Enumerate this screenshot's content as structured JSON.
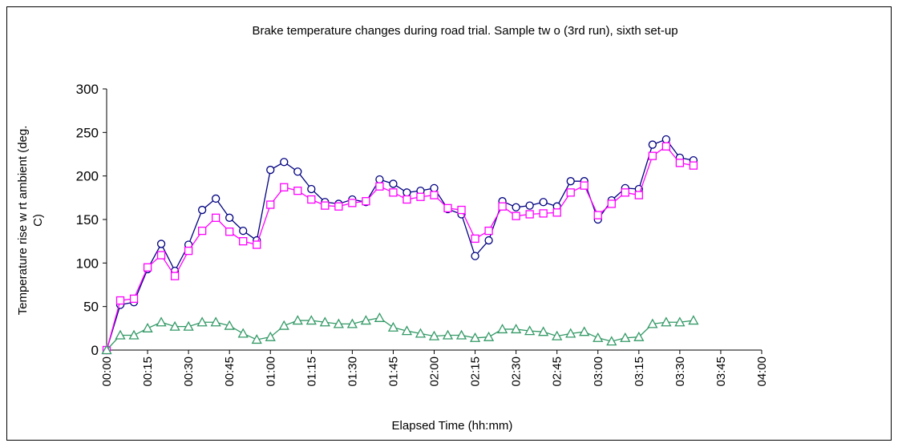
{
  "chart_data": {
    "type": "line",
    "title": "Brake temperature changes during road trial. Sample tw o (3rd run), sixth set-up",
    "xlabel": "Elapsed Time (hh:mm)",
    "ylabel": [
      "Temperature rise w rt ambient (deg.",
      "C)"
    ],
    "x": [
      0,
      5,
      10,
      15,
      20,
      25,
      30,
      35,
      40,
      45,
      50,
      55,
      60,
      65,
      70,
      75,
      80,
      85,
      90,
      95,
      100,
      105,
      110,
      115,
      120,
      125,
      130,
      135,
      140,
      145,
      150,
      155,
      160,
      165,
      170,
      175,
      180,
      185,
      190,
      195,
      200,
      205,
      210,
      215
    ],
    "series": [
      {
        "color": "#000080",
        "marker": "circle",
        "values": [
          0,
          52,
          55,
          93,
          122,
          91,
          121,
          161,
          174,
          152,
          137,
          126,
          207,
          216,
          205,
          185,
          170,
          168,
          173,
          170,
          196,
          191,
          181,
          183,
          186,
          162,
          156,
          108,
          126,
          171,
          164,
          166,
          170,
          165,
          194,
          194,
          150,
          172,
          186,
          185,
          236,
          242,
          221,
          218
        ]
      },
      {
        "color": "#ff00ff",
        "marker": "square",
        "values": [
          0,
          57,
          59,
          95,
          109,
          85,
          114,
          137,
          152,
          136,
          125,
          121,
          167,
          187,
          183,
          173,
          166,
          165,
          169,
          171,
          188,
          181,
          173,
          176,
          178,
          163,
          161,
          128,
          137,
          165,
          154,
          156,
          157,
          158,
          181,
          189,
          155,
          168,
          181,
          178,
          223,
          234,
          215,
          212
        ]
      },
      {
        "color": "#339966",
        "marker": "triangle",
        "values": [
          0,
          17,
          17,
          25,
          32,
          27,
          27,
          32,
          32,
          28,
          19,
          12,
          15,
          28,
          34,
          34,
          32,
          30,
          30,
          34,
          37,
          26,
          22,
          19,
          16,
          17,
          17,
          14,
          15,
          24,
          24,
          22,
          21,
          16,
          19,
          21,
          14,
          10,
          14,
          15,
          30,
          32,
          32,
          34
        ]
      }
    ],
    "xlim": [
      0,
      240
    ],
    "xticks": [
      {
        "value": 0,
        "label": "00:00"
      },
      {
        "value": 15,
        "label": "00:15"
      },
      {
        "value": 30,
        "label": "00:30"
      },
      {
        "value": 45,
        "label": "00:45"
      },
      {
        "value": 60,
        "label": "01:00"
      },
      {
        "value": 75,
        "label": "01:15"
      },
      {
        "value": 90,
        "label": "01:30"
      },
      {
        "value": 105,
        "label": "01:45"
      },
      {
        "value": 120,
        "label": "02:00"
      },
      {
        "value": 135,
        "label": "02:15"
      },
      {
        "value": 150,
        "label": "02:30"
      },
      {
        "value": 165,
        "label": "02:45"
      },
      {
        "value": 180,
        "label": "03:00"
      },
      {
        "value": 195,
        "label": "03:15"
      },
      {
        "value": 210,
        "label": "03:30"
      },
      {
        "value": 225,
        "label": "03:45"
      },
      {
        "value": 240,
        "label": "04:00"
      }
    ],
    "ylim": [
      0,
      300
    ],
    "yticks": [
      0,
      50,
      100,
      150,
      200,
      250,
      300
    ],
    "grid": false
  }
}
